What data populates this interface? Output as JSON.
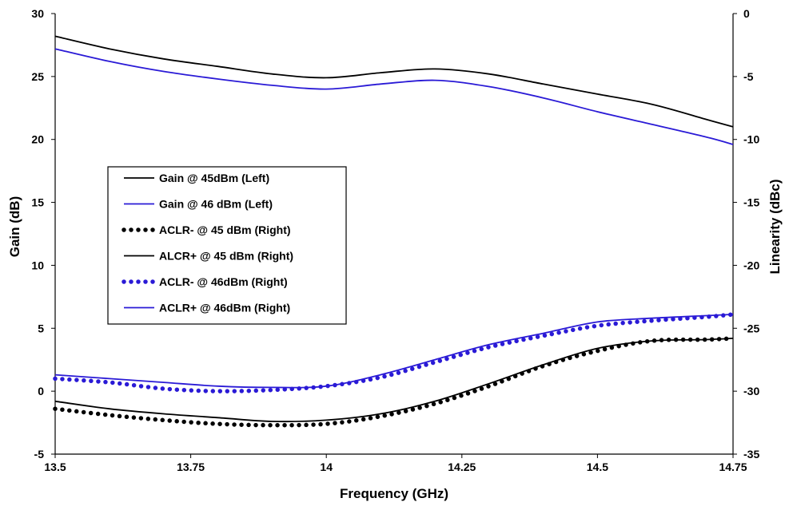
{
  "chart_data": {
    "type": "line",
    "xlabel": "Frequency (GHz)",
    "ylabel_left": "Gain (dB)",
    "ylabel_right": "Linearity (dBc)",
    "xlim": [
      13.5,
      14.75
    ],
    "ylim_left": [
      -5,
      30
    ],
    "ylim_right": [
      -35,
      0
    ],
    "x_ticks": [
      "13.5",
      "13.75",
      "14",
      "14.25",
      "14.5",
      "14.75"
    ],
    "y_left_ticks": [
      "-5",
      "0",
      "5",
      "10",
      "15",
      "20",
      "25",
      "30"
    ],
    "y_right_ticks": [
      "-35",
      "-30",
      "-25",
      "-20",
      "-15",
      "-10",
      "-5",
      "0"
    ],
    "grid": false,
    "legend_position": "middle-left",
    "series": [
      {
        "name": "Gain @ 45dBm (Left)",
        "axis": "left",
        "color": "#000000",
        "style": "solid",
        "x": [
          13.5,
          13.6,
          13.7,
          13.8,
          13.9,
          14.0,
          14.1,
          14.2,
          14.3,
          14.4,
          14.5,
          14.6,
          14.7,
          14.75
        ],
        "y": [
          28.2,
          27.2,
          26.4,
          25.8,
          25.2,
          24.9,
          25.3,
          25.6,
          25.2,
          24.4,
          23.6,
          22.8,
          21.6,
          21.0
        ]
      },
      {
        "name": "Gain @ 46 dBm (Left)",
        "axis": "left",
        "color": "#2a1ad6",
        "style": "solid",
        "x": [
          13.5,
          13.6,
          13.7,
          13.8,
          13.9,
          14.0,
          14.1,
          14.2,
          14.3,
          14.4,
          14.5,
          14.6,
          14.7,
          14.75
        ],
        "y": [
          27.2,
          26.2,
          25.4,
          24.8,
          24.3,
          24.0,
          24.4,
          24.7,
          24.2,
          23.3,
          22.2,
          21.2,
          20.2,
          19.6
        ]
      },
      {
        "name": "ACLR- @ 45 dBm (Right)",
        "axis": "right",
        "color": "#000000",
        "style": "dotted",
        "x": [
          13.5,
          13.6,
          13.7,
          13.8,
          13.9,
          14.0,
          14.1,
          14.2,
          14.3,
          14.4,
          14.5,
          14.6,
          14.7,
          14.75
        ],
        "y": [
          -31.4,
          -31.9,
          -32.3,
          -32.6,
          -32.7,
          -32.6,
          -32.0,
          -31.0,
          -29.6,
          -28.0,
          -26.8,
          -26.0,
          -25.9,
          -25.8
        ]
      },
      {
        "name": "ALCR+ @ 45 dBm (Right)",
        "axis": "right",
        "color": "#000000",
        "style": "solid",
        "x": [
          13.5,
          13.6,
          13.7,
          13.8,
          13.9,
          14.0,
          14.1,
          14.2,
          14.3,
          14.4,
          14.5,
          14.6,
          14.7,
          14.75
        ],
        "y": [
          -30.8,
          -31.4,
          -31.8,
          -32.1,
          -32.4,
          -32.3,
          -31.8,
          -30.8,
          -29.4,
          -27.9,
          -26.6,
          -26.0,
          -25.9,
          -25.8
        ]
      },
      {
        "name": "ACLR- @ 46dBm (Right)",
        "axis": "right",
        "color": "#2a1ad6",
        "style": "dotted",
        "x": [
          13.5,
          13.6,
          13.7,
          13.8,
          13.9,
          14.0,
          14.1,
          14.2,
          14.3,
          14.4,
          14.5,
          14.6,
          14.7,
          14.75
        ],
        "y": [
          -29.0,
          -29.3,
          -29.8,
          -30.0,
          -29.9,
          -29.6,
          -28.9,
          -27.7,
          -26.5,
          -25.6,
          -24.8,
          -24.4,
          -24.1,
          -23.9
        ]
      },
      {
        "name": "ACLR+ @ 46dBm (Right)",
        "axis": "right",
        "color": "#2a1ad6",
        "style": "solid",
        "x": [
          13.5,
          13.6,
          13.7,
          13.8,
          13.9,
          14.0,
          14.1,
          14.2,
          14.3,
          14.4,
          14.5,
          14.6,
          14.7,
          14.75
        ],
        "y": [
          -28.7,
          -29.0,
          -29.3,
          -29.6,
          -29.7,
          -29.6,
          -28.7,
          -27.5,
          -26.3,
          -25.4,
          -24.5,
          -24.2,
          -24.0,
          -23.9
        ]
      }
    ]
  }
}
